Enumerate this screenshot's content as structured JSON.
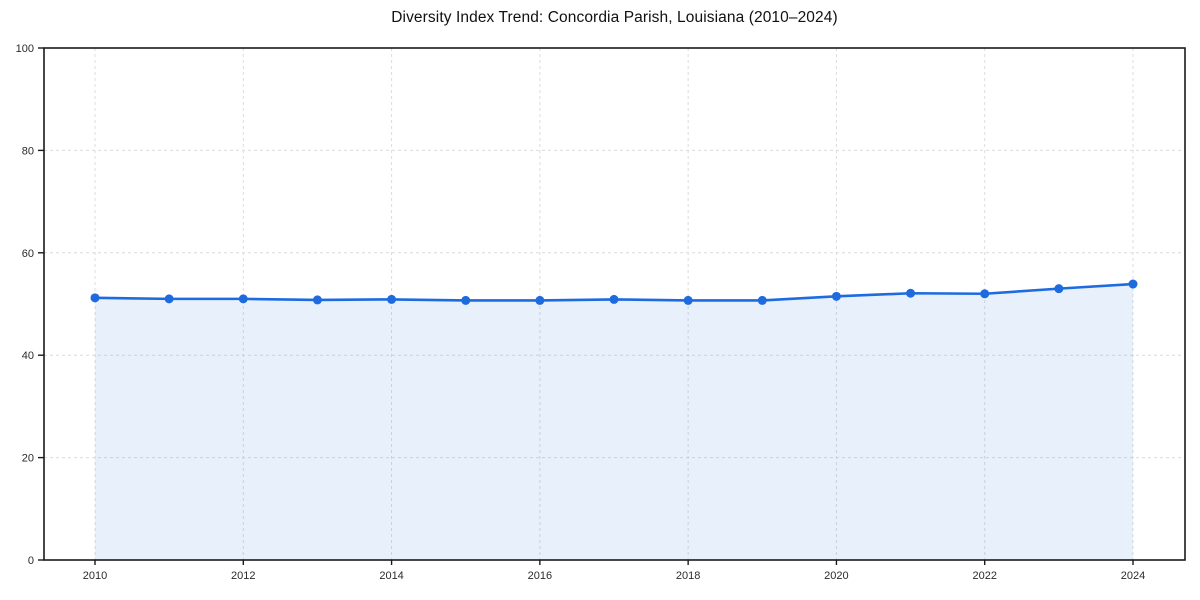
{
  "chart_data": {
    "type": "area",
    "title": "Diversity Index Trend: Concordia Parish, Louisiana (2010–2024)",
    "series_name": "Diversity Index",
    "x": [
      2010,
      2011,
      2012,
      2013,
      2014,
      2015,
      2016,
      2017,
      2018,
      2019,
      2020,
      2021,
      2022,
      2023,
      2024
    ],
    "values": [
      51.2,
      51.0,
      51.0,
      50.8,
      50.9,
      50.7,
      50.7,
      50.9,
      50.7,
      50.7,
      51.5,
      52.1,
      52.0,
      53.0,
      53.9
    ],
    "x_ticks": [
      2010,
      2012,
      2014,
      2016,
      2018,
      2020,
      2022,
      2024
    ],
    "y_ticks": [
      0,
      20,
      40,
      60,
      80,
      100
    ],
    "ylim": [
      0,
      100
    ],
    "xlabel": "",
    "ylabel": "",
    "grid": true,
    "legend_position": "none",
    "colors": {
      "line": "#1e6be0",
      "marker": "#1e6be0",
      "fill": "#1e6be0",
      "fill_opacity": 0.1,
      "grid": "#dcdcdc",
      "spine": "#1a1a1a",
      "tick_label": "#2b2b2b",
      "title": "#111111",
      "background": "#ffffff"
    }
  }
}
